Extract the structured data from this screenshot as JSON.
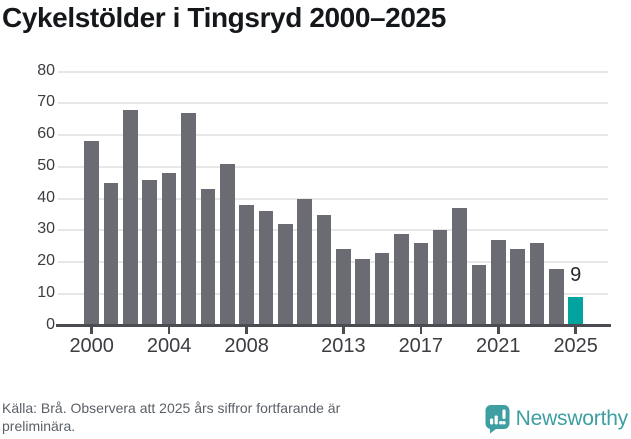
{
  "title": "Cykelstölder i Tingsryd 2000–2025",
  "chart_data": {
    "type": "bar",
    "title": "Cykelstölder i Tingsryd 2000–2025",
    "categories": [
      2000,
      2001,
      2002,
      2003,
      2004,
      2005,
      2006,
      2007,
      2008,
      2009,
      2010,
      2011,
      2012,
      2013,
      2014,
      2015,
      2016,
      2017,
      2018,
      2019,
      2020,
      2021,
      2022,
      2023,
      2024,
      2025
    ],
    "values": [
      58,
      45,
      68,
      46,
      48,
      67,
      43,
      51,
      38,
      36,
      32,
      40,
      35,
      24,
      21,
      23,
      29,
      26,
      30,
      37,
      19,
      27,
      24,
      26,
      18,
      9
    ],
    "xlabel": "",
    "ylabel": "",
    "ylim": [
      0,
      80
    ],
    "yticks": [
      0,
      10,
      20,
      30,
      40,
      50,
      60,
      70,
      80
    ],
    "xtick_labels": [
      2000,
      2004,
      2008,
      2013,
      2017,
      2021,
      2025
    ],
    "grid": "horizontal",
    "legend": "none",
    "bar_color": "#6b6b73",
    "axis_color": "#4b4b52",
    "gridline_color": "#e7e7e7",
    "highlight": {
      "category": 2025,
      "color": "#00a39d",
      "label": "9"
    }
  },
  "footer": {
    "source_note": "Källa: Brå. Observera att 2025 års siffror fortfarande är preliminära."
  },
  "branding": {
    "wordmark": "Newsworthy",
    "logo_icon": "newsworthy-speech-bubble-bar-chart-icon",
    "brand_color": "#3d9fa1"
  }
}
